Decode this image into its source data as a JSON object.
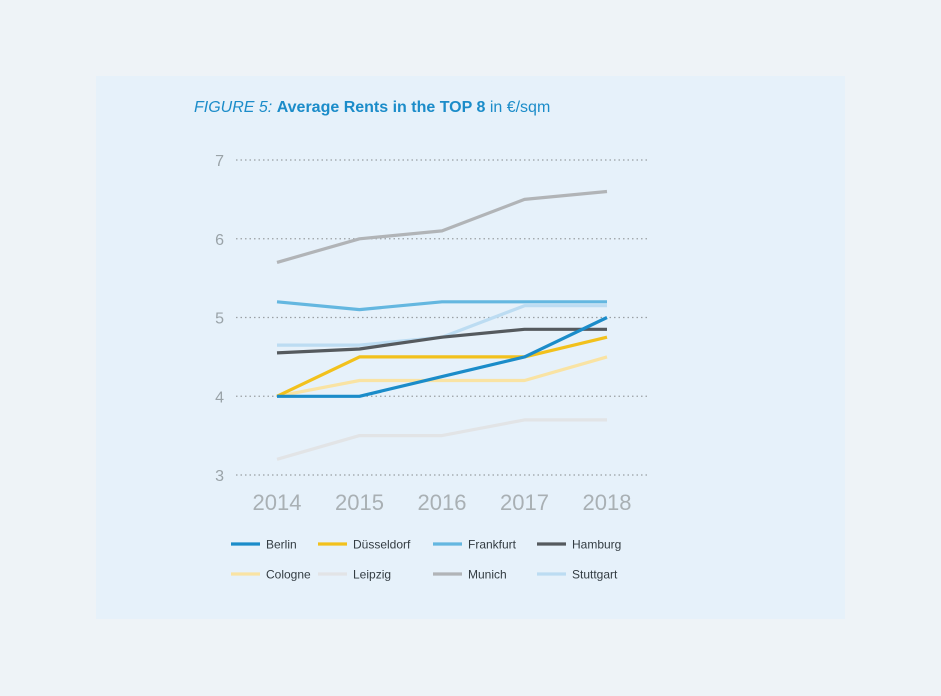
{
  "title": {
    "figure": "FIGURE 5:",
    "main": "Average Rents in the TOP 8",
    "unit": "in €/sqm"
  },
  "chart_data": {
    "type": "line",
    "x": [
      "2014",
      "2015",
      "2016",
      "2017",
      "2018"
    ],
    "ylim": [
      3,
      7
    ],
    "yticks": [
      3,
      4,
      5,
      6,
      7
    ],
    "grid": true,
    "legend_position": "bottom",
    "series": [
      {
        "name": "Berlin",
        "color": "#1b8cc9",
        "values": [
          4.0,
          4.0,
          4.25,
          4.5,
          5.0
        ]
      },
      {
        "name": "Düsseldorf",
        "color": "#f2c11c",
        "values": [
          4.0,
          4.5,
          4.5,
          4.5,
          4.75
        ]
      },
      {
        "name": "Frankfurt",
        "color": "#64b7e0",
        "values": [
          5.2,
          5.1,
          5.2,
          5.2,
          5.2
        ]
      },
      {
        "name": "Hamburg",
        "color": "#555a5e",
        "values": [
          4.55,
          4.6,
          4.75,
          4.85,
          4.85
        ]
      },
      {
        "name": "Cologne",
        "color": "#f9e3a3",
        "values": [
          4.0,
          4.2,
          4.2,
          4.2,
          4.5
        ]
      },
      {
        "name": "Leipzig",
        "color": "#e2e4e6",
        "values": [
          3.2,
          3.5,
          3.5,
          3.7,
          3.7
        ]
      },
      {
        "name": "Munich",
        "color": "#b1b4b7",
        "values": [
          5.7,
          6.0,
          6.1,
          6.5,
          6.6
        ]
      },
      {
        "name": "Stuttgart",
        "color": "#bcdcf2",
        "values": [
          4.65,
          4.65,
          4.75,
          5.15,
          5.15
        ]
      }
    ]
  }
}
